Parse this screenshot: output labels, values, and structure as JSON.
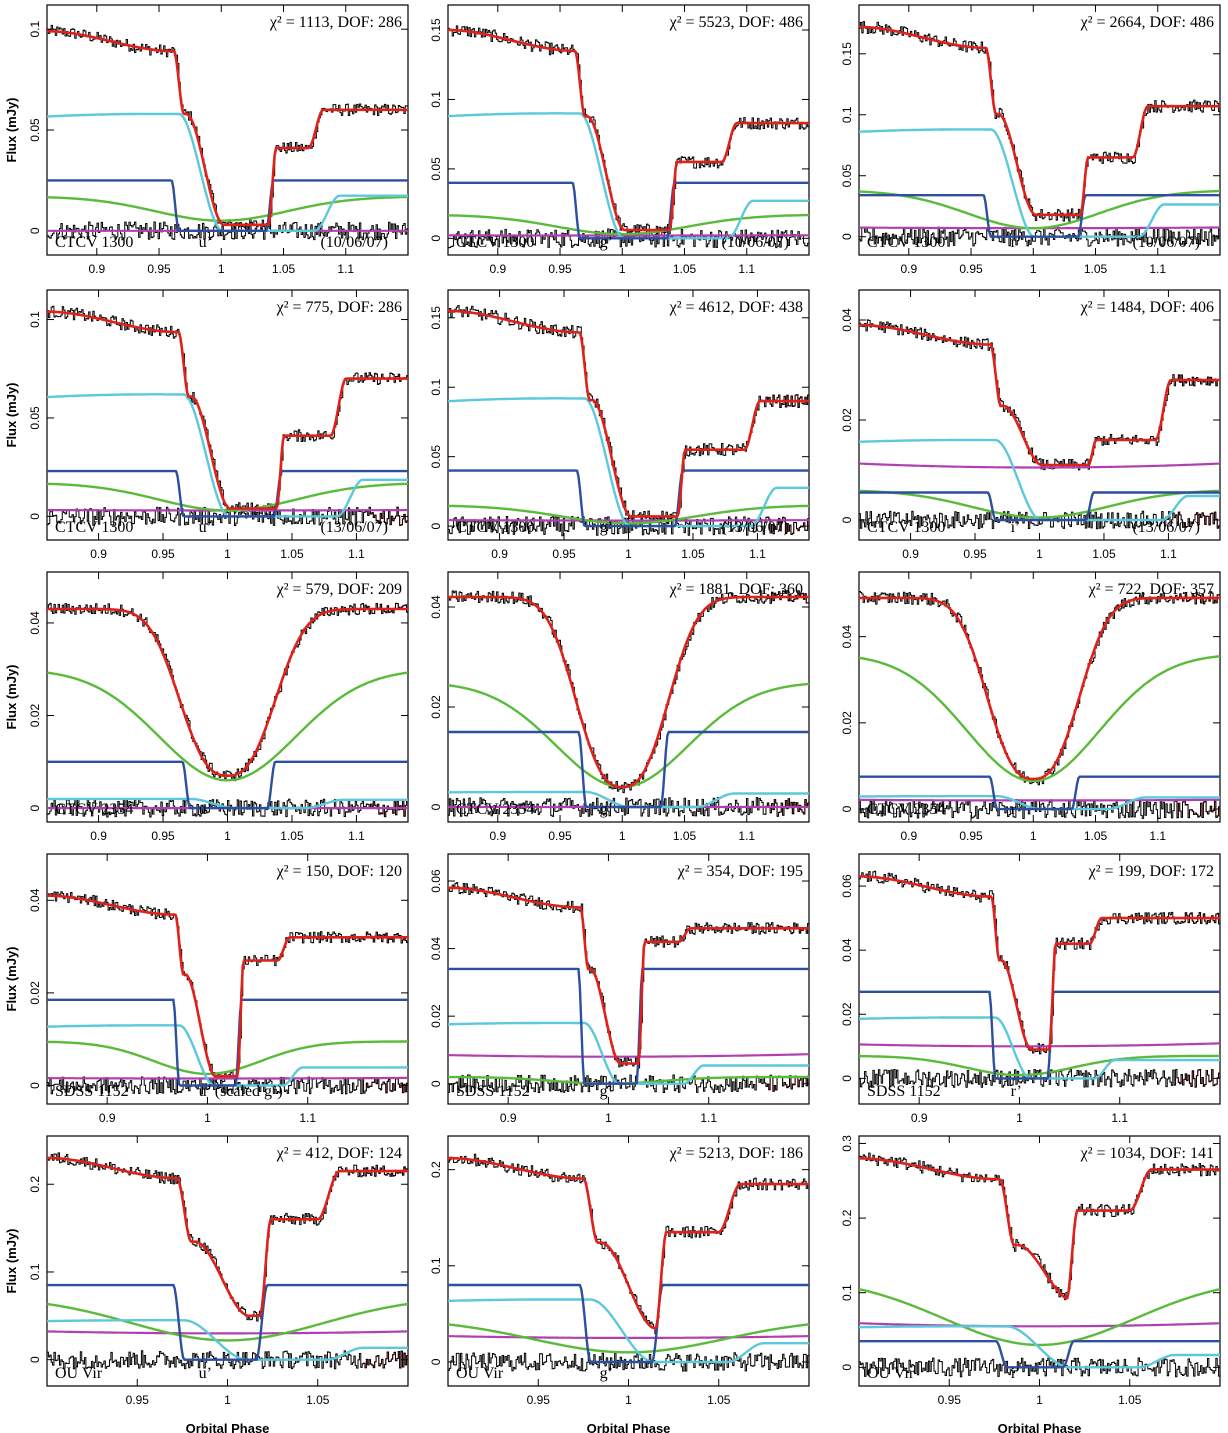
{
  "figure": {
    "ylabel": "Flux (mJy)",
    "xlabel": "Orbital Phase",
    "component_colors": {
      "data": "#000000",
      "masked_data": "#e02020",
      "total_model": "#e0201a",
      "white_dwarf": "#2c4fa0",
      "disc": "#5cc8dc",
      "secondary": "#5aba3a",
      "bright_spot": "#b040b0"
    }
  },
  "chart_data": [
    {
      "type": "line",
      "object": "CTCV 1300",
      "band": "u’",
      "date": "(10/06/07)",
      "chi2": "χ² = 1113, DOF: 286",
      "xlim": [
        0.86,
        1.15
      ],
      "xticks": [
        0.9,
        0.95,
        1,
        1.05,
        1.1
      ],
      "ylim": [
        -0.012,
        0.112
      ],
      "yticks": [
        0,
        0.05,
        0.1
      ],
      "levels": {
        "total_max": 0.099,
        "total_min": 0.003,
        "after_step": 0.041,
        "after_end": 0.06,
        "wd": 0.025,
        "disc_max": 0.058,
        "sec_max": 0.017,
        "sec_min": 0.005,
        "spot": 0.0
      },
      "times": {
        "d1": 0.962,
        "d2": 0.972,
        "dm": 1.0,
        "r1": 1.038,
        "r2": 1.07
      },
      "has_masked": false
    },
    {
      "type": "line",
      "object": "CTCV 1300",
      "band": "g’",
      "date": "(10/06/07)",
      "chi2": "χ² = 5523, DOF: 486",
      "xlim": [
        0.86,
        1.15
      ],
      "xticks": [
        0.9,
        0.95,
        1,
        1.05,
        1.1
      ],
      "ylim": [
        -0.012,
        0.168
      ],
      "yticks": [
        0,
        0.05,
        0.1,
        0.15
      ],
      "levels": {
        "total_max": 0.15,
        "total_min": 0.006,
        "after_step": 0.055,
        "after_end": 0.083,
        "wd": 0.04,
        "disc_max": 0.09,
        "sec_max": 0.017,
        "sec_min": 0.003,
        "spot": 0.002
      },
      "times": {
        "d1": 0.962,
        "d2": 0.972,
        "dm": 1.0,
        "r1": 1.038,
        "r2": 1.08
      },
      "has_masked": false
    },
    {
      "type": "line",
      "object": "CTCV 1300",
      "band": "r’",
      "date": "(10/06/07)",
      "chi2": "χ² = 2664, DOF: 486",
      "xlim": [
        0.86,
        1.15
      ],
      "xticks": [
        0.9,
        0.95,
        1,
        1.05,
        1.1
      ],
      "ylim": [
        -0.015,
        0.19
      ],
      "yticks": [
        0,
        0.05,
        0.1,
        0.15
      ],
      "levels": {
        "total_max": 0.172,
        "total_min": 0.018,
        "after_step": 0.065,
        "after_end": 0.107,
        "wd": 0.034,
        "disc_max": 0.088,
        "sec_max": 0.038,
        "sec_min": 0.007,
        "spot": 0.007
      },
      "times": {
        "d1": 0.962,
        "d2": 0.972,
        "dm": 1.0,
        "r1": 1.038,
        "r2": 1.08
      },
      "has_masked": false
    },
    {
      "type": "line",
      "object": "CTCV 1300",
      "band": "u’",
      "date": "(13/06/07)",
      "chi2": "χ² = 775, DOF: 286",
      "xlim": [
        0.86,
        1.14
      ],
      "xticks": [
        0.9,
        0.95,
        1,
        1.05,
        1.1
      ],
      "ylim": [
        -0.012,
        0.115
      ],
      "yticks": [
        0,
        0.05,
        0.1
      ],
      "levels": {
        "total_max": 0.104,
        "total_min": 0.004,
        "after_step": 0.041,
        "after_end": 0.07,
        "wd": 0.023,
        "disc_max": 0.062,
        "sec_max": 0.017,
        "sec_min": 0.003,
        "spot": 0.003
      },
      "times": {
        "d1": 0.962,
        "d2": 0.972,
        "dm": 1.0,
        "r1": 1.038,
        "r2": 1.08
      },
      "has_masked": true
    },
    {
      "type": "line",
      "object": "CTCV 1300",
      "band": "g’",
      "date": "(13/06/07)",
      "chi2": "χ² = 4612, DOF: 438",
      "xlim": [
        0.86,
        1.14
      ],
      "xticks": [
        0.9,
        0.95,
        1,
        1.05,
        1.1
      ],
      "ylim": [
        -0.01,
        0.17
      ],
      "yticks": [
        0,
        0.05,
        0.1,
        0.15
      ],
      "levels": {
        "total_max": 0.155,
        "total_min": 0.007,
        "after_step": 0.055,
        "after_end": 0.09,
        "wd": 0.04,
        "disc_max": 0.092,
        "sec_max": 0.015,
        "sec_min": 0.002,
        "spot": 0.004
      },
      "times": {
        "d1": 0.962,
        "d2": 0.972,
        "dm": 1.0,
        "r1": 1.038,
        "r2": 1.09
      },
      "has_masked": true
    },
    {
      "type": "line",
      "object": "CTCV 1300",
      "band": "i’",
      "date": "(13/06/07)",
      "chi2": "χ² = 1484, DOF: 406",
      "xlim": [
        0.86,
        1.14
      ],
      "xticks": [
        0.9,
        0.95,
        1,
        1.05,
        1.1
      ],
      "ylim": [
        -0.004,
        0.046
      ],
      "yticks": [
        0,
        0.02,
        0.04
      ],
      "levels": {
        "total_max": 0.039,
        "total_min": 0.011,
        "after_step": 0.016,
        "after_end": 0.028,
        "wd": 0.0055,
        "disc_max": 0.016,
        "sec_max": 0.006,
        "sec_min": 0.0005,
        "spot": 0.0105
      },
      "times": {
        "d1": 0.962,
        "d2": 0.972,
        "dm": 1.01,
        "r1": 1.038,
        "r2": 1.09
      },
      "has_masked": true
    },
    {
      "type": "line",
      "object": "CTCV 2354",
      "band": "u’",
      "chi2": "χ² = 579, DOF: 209",
      "xlim": [
        0.86,
        1.14
      ],
      "xticks": [
        0.9,
        0.95,
        1,
        1.05,
        1.1
      ],
      "ylim": [
        -0.003,
        0.051
      ],
      "yticks": [
        0,
        0.02,
        0.04
      ],
      "levels": {
        "total_max": 0.043,
        "total_min": 0.007,
        "wd": 0.01,
        "disc_max": 0.002,
        "sec_max": 0.03,
        "sec_min": 0.006,
        "spot": 0.0
      },
      "times": {
        "d1": 0.967,
        "dm": 1.0,
        "r1": 1.033
      },
      "has_masked": true
    },
    {
      "type": "line",
      "object": "CTCV 2354",
      "band": "g’",
      "chi2": "χ² = 1881, DOF: 360",
      "xlim": [
        0.86,
        1.15
      ],
      "xticks": [
        0.9,
        0.95,
        1,
        1.05,
        1.1
      ],
      "ylim": [
        -0.003,
        0.047
      ],
      "yticks": [
        0,
        0.02,
        0.04
      ],
      "levels": {
        "total_max": 0.042,
        "total_min": 0.004,
        "wd": 0.015,
        "disc_max": 0.003,
        "sec_max": 0.025,
        "sec_min": 0.004,
        "spot": 0.0
      },
      "times": {
        "d1": 0.967,
        "dm": 1.0,
        "r1": 1.033
      },
      "has_masked": true
    },
    {
      "type": "line",
      "object": "CTCV 2354",
      "band": "r’",
      "chi2": "χ² = 722, DOF: 357",
      "xlim": [
        0.86,
        1.15
      ],
      "xticks": [
        0.9,
        0.95,
        1,
        1.05,
        1.1
      ],
      "ylim": [
        -0.003,
        0.055
      ],
      "yticks": [
        0,
        0.02,
        0.04
      ],
      "levels": {
        "total_max": 0.049,
        "total_min": 0.007,
        "wd": 0.0075,
        "disc_max": 0.003,
        "sec_max": 0.036,
        "sec_min": 0.0065,
        "spot": 0.002
      },
      "times": {
        "d1": 0.967,
        "dm": 1.0,
        "r1": 1.033
      },
      "has_masked": true
    },
    {
      "type": "line",
      "object": "SDSS 1152",
      "band": "u’ (scaled g’)",
      "chi2": "χ² = 150, DOF: 120",
      "xlim": [
        0.84,
        1.2
      ],
      "xticks": [
        0.9,
        1,
        1.1
      ],
      "ylim": [
        -0.004,
        0.05
      ],
      "yticks": [
        0,
        0.02,
        0.04
      ],
      "levels": {
        "total_max": 0.041,
        "total_min": 0.002,
        "after_step": 0.027,
        "after_end": 0.032,
        "wd": 0.0185,
        "disc_max": 0.013,
        "sec_max": 0.0095,
        "sec_min": 0.0025,
        "spot": 0.0015
      },
      "times": {
        "d1": 0.968,
        "d2": 0.978,
        "dm": 1.0,
        "r1": 1.03,
        "r2": 1.07
      },
      "has_masked": true
    },
    {
      "type": "line",
      "object": "SDSS 1152",
      "band": "g’",
      "chi2": "χ² = 354, DOF: 195",
      "xlim": [
        0.84,
        1.2
      ],
      "xticks": [
        0.9,
        1,
        1.1
      ],
      "ylim": [
        -0.006,
        0.068
      ],
      "yticks": [
        0,
        0.02,
        0.04,
        0.06
      ],
      "levels": {
        "total_max": 0.058,
        "total_min": 0.006,
        "after_step": 0.042,
        "after_end": 0.046,
        "wd": 0.034,
        "disc_max": 0.018,
        "sec_max": 0.002,
        "sec_min": 0.0,
        "spot": 0.008
      },
      "times": {
        "d1": 0.972,
        "d2": 0.982,
        "dm": 1.0,
        "r1": 1.03,
        "r2": 1.07
      },
      "has_masked": true
    },
    {
      "type": "line",
      "object": "SDSS 1152",
      "band": "r’",
      "chi2": "χ² = 199, DOF: 172",
      "xlim": [
        0.84,
        1.2
      ],
      "xticks": [
        0.9,
        1,
        1.1
      ],
      "ylim": [
        -0.008,
        0.07
      ],
      "yticks": [
        0,
        0.02,
        0.04,
        0.06
      ],
      "levels": {
        "total_max": 0.063,
        "total_min": 0.009,
        "after_step": 0.042,
        "after_end": 0.05,
        "wd": 0.027,
        "disc_max": 0.019,
        "sec_max": 0.007,
        "sec_min": 0.001,
        "spot": 0.01
      },
      "times": {
        "d1": 0.972,
        "d2": 0.982,
        "dm": 1.0,
        "r1": 1.03,
        "r2": 1.07
      },
      "has_masked": true
    },
    {
      "type": "line",
      "object": "OU Vir",
      "band": "u’",
      "chi2": "χ² = 412, DOF: 124",
      "xlim": [
        0.9,
        1.1
      ],
      "xticks": [
        0.95,
        1,
        1.05
      ],
      "ylim": [
        -0.03,
        0.255
      ],
      "yticks": [
        0,
        0.1,
        0.2
      ],
      "levels": {
        "total_max": 0.23,
        "total_min": 0.05,
        "after_step": 0.16,
        "after_end": 0.215,
        "wd": 0.085,
        "disc_max": 0.045,
        "sec_max": 0.072,
        "sec_min": 0.022,
        "spot": 0.03
      },
      "times": {
        "d1": 0.972,
        "d2": 0.982,
        "dm": 1.0,
        "r1": 1.018,
        "r2": 1.05
      },
      "has_masked": true
    },
    {
      "type": "line",
      "object": "OU Vir",
      "band": "g’",
      "chi2": "χ² = 5213, DOF: 186",
      "xlim": [
        0.9,
        1.1
      ],
      "xticks": [
        0.95,
        1,
        1.05
      ],
      "ylim": [
        -0.025,
        0.235
      ],
      "yticks": [
        0,
        0.1,
        0.2
      ],
      "levels": {
        "total_max": 0.212,
        "total_min": 0.035,
        "after_step": 0.135,
        "after_end": 0.185,
        "wd": 0.08,
        "disc_max": 0.065,
        "sec_max": 0.045,
        "sec_min": 0.01,
        "spot": 0.025
      },
      "times": {
        "d1": 0.975,
        "d2": 0.985,
        "dm": 1.0,
        "r1": 1.015,
        "r2": 1.05
      },
      "has_masked": false
    },
    {
      "type": "line",
      "object": "OU Vir",
      "band": "i’",
      "chi2": "χ² = 1034, DOF: 141",
      "xlim": [
        0.9,
        1.1
      ],
      "xticks": [
        0.95,
        1,
        1.05
      ],
      "ylim": [
        -0.025,
        0.31
      ],
      "yticks": [
        0,
        0.1,
        0.2,
        0.3
      ],
      "levels": {
        "total_max": 0.28,
        "total_min": 0.09,
        "after_step": 0.21,
        "after_end": 0.265,
        "wd": 0.035,
        "disc_max": 0.055,
        "sec_max": 0.12,
        "sec_min": 0.03,
        "spot": 0.055
      },
      "times": {
        "d1": 0.978,
        "d2": 0.988,
        "dm": 1.01,
        "r1": 1.015,
        "r2": 1.05
      },
      "has_masked": false
    }
  ]
}
